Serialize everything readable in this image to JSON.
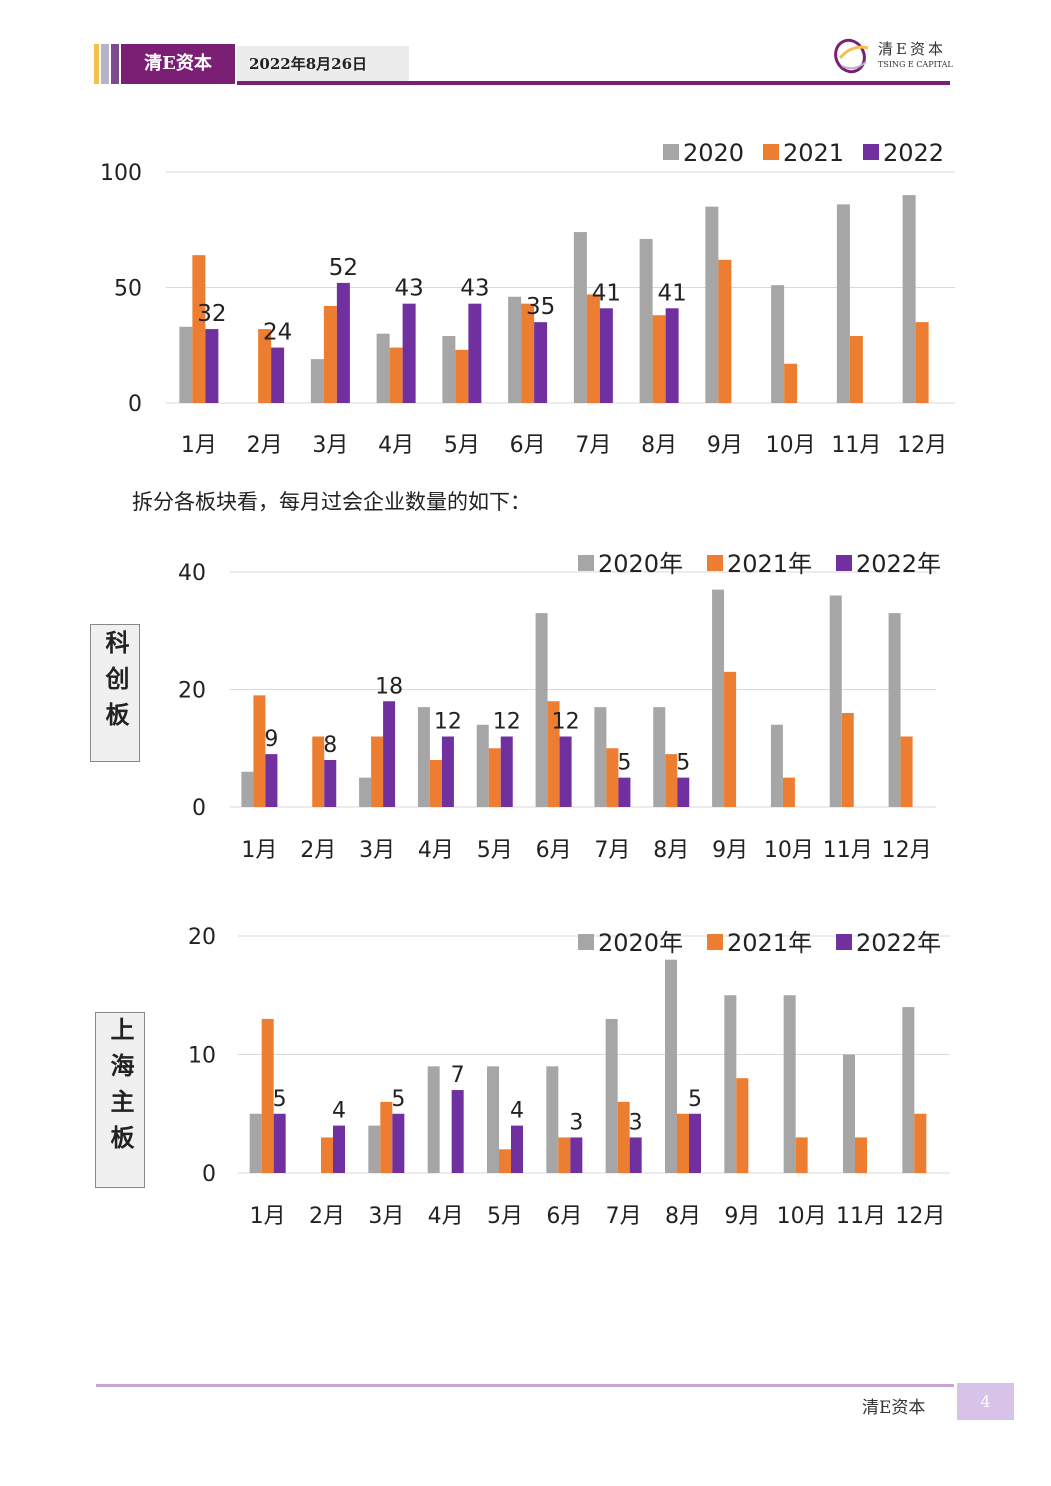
{
  "header": {
    "brand": "清E资本",
    "date": "2022年8月26日",
    "logo_cn": "清E资本",
    "logo_en": "TSING E CAPITAL"
  },
  "intro_text": "拆分各板块看，每月过会企业数量的如下：",
  "footer": {
    "brand": "清E资本",
    "page_number": "4"
  },
  "colors": {
    "s2020": "#a6a6a6",
    "s2021": "#ed7d31",
    "s2022": "#7030a0",
    "brand": "#7a1f74"
  },
  "chart_data": [
    {
      "type": "bar",
      "categories": [
        "1月",
        "2月",
        "3月",
        "4月",
        "5月",
        "6月",
        "7月",
        "8月",
        "9月",
        "10月",
        "11月",
        "12月"
      ],
      "series": [
        {
          "name": "2020",
          "values": [
            33,
            0,
            19,
            30,
            29,
            46,
            74,
            71,
            85,
            51,
            86,
            90
          ]
        },
        {
          "name": "2021",
          "values": [
            64,
            32,
            42,
            24,
            23,
            43,
            47,
            38,
            62,
            17,
            29,
            35
          ]
        },
        {
          "name": "2022",
          "values": [
            32,
            24,
            52,
            43,
            43,
            35,
            41,
            41,
            null,
            null,
            null,
            null
          ]
        }
      ],
      "data_labels_series": "2022",
      "y_ticks": [
        0,
        50,
        100
      ],
      "ylim": [
        0,
        100
      ],
      "grid": true,
      "legend": "top-right"
    },
    {
      "type": "bar",
      "side_label": "科创板",
      "categories": [
        "1月",
        "2月",
        "3月",
        "4月",
        "5月",
        "6月",
        "7月",
        "8月",
        "9月",
        "10月",
        "11月",
        "12月"
      ],
      "series": [
        {
          "name": "2020年",
          "values": [
            6,
            0,
            5,
            17,
            14,
            33,
            17,
            17,
            37,
            14,
            36,
            33
          ]
        },
        {
          "name": "2021年",
          "values": [
            19,
            12,
            12,
            8,
            10,
            18,
            10,
            9,
            23,
            5,
            16,
            12
          ]
        },
        {
          "name": "2022年",
          "values": [
            9,
            8,
            18,
            12,
            12,
            12,
            5,
            5,
            null,
            null,
            null,
            null
          ]
        }
      ],
      "data_labels_series": "2022年",
      "y_ticks": [
        0,
        20,
        40
      ],
      "ylim": [
        0,
        40
      ],
      "grid": true,
      "legend": "top-right"
    },
    {
      "type": "bar",
      "side_label": "上海主板",
      "categories": [
        "1月",
        "2月",
        "3月",
        "4月",
        "5月",
        "6月",
        "7月",
        "8月",
        "9月",
        "10月",
        "11月",
        "12月"
      ],
      "series": [
        {
          "name": "2020年",
          "values": [
            5,
            0,
            4,
            9,
            9,
            9,
            13,
            18,
            15,
            15,
            10,
            14
          ]
        },
        {
          "name": "2021年",
          "values": [
            13,
            3,
            6,
            0,
            2,
            3,
            6,
            5,
            8,
            3,
            3,
            5
          ]
        },
        {
          "name": "2022年",
          "values": [
            5,
            4,
            5,
            7,
            4,
            3,
            3,
            5,
            null,
            null,
            null,
            null
          ]
        }
      ],
      "data_labels_series": "2022年",
      "y_ticks": [
        0,
        10,
        20
      ],
      "ylim": [
        0,
        20
      ],
      "grid": true,
      "legend": "top-right"
    }
  ]
}
